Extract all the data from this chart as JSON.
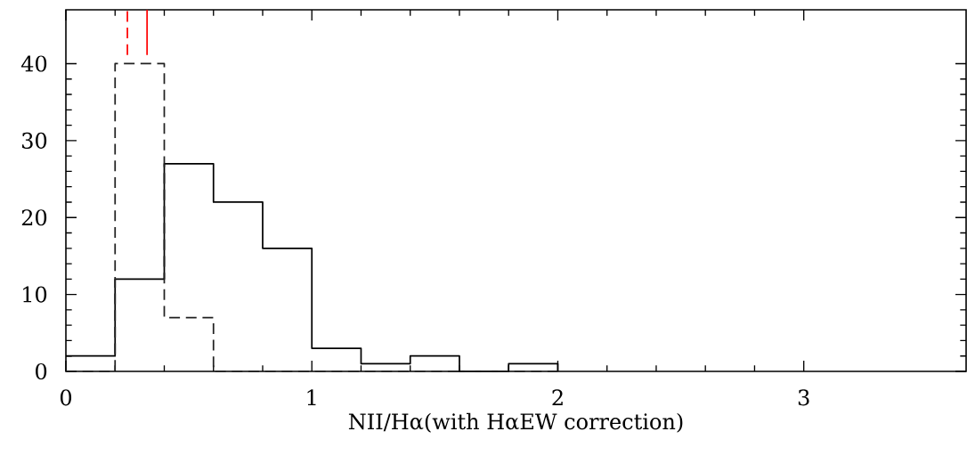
{
  "chart_data": {
    "type": "histogram",
    "xlabel": "NII/Hα(with HαEW correction)",
    "bins": [
      0,
      0.2,
      0.4,
      0.6,
      0.8,
      1.0,
      1.2,
      1.4,
      1.6,
      1.8,
      2.0
    ],
    "series": [
      {
        "color": "#000000",
        "line_style": "solid",
        "values": [
          2,
          12,
          27,
          22,
          16,
          3,
          1,
          2,
          0,
          1
        ]
      },
      {
        "color": "#202020",
        "line_style": "dashed",
        "values": [
          0,
          40,
          7,
          0,
          0,
          0,
          0,
          0,
          0,
          0
        ]
      }
    ],
    "xlim": [
      0,
      3.66
    ],
    "ylim": [
      0,
      47
    ],
    "xticks": [
      0,
      1,
      2,
      3
    ],
    "yticks": [
      0,
      10,
      20,
      30,
      40
    ],
    "ref_lines": [
      {
        "axis": "x",
        "value": 0.25,
        "color": "#ff0000",
        "line_style": "dashed"
      },
      {
        "axis": "x",
        "value": 0.33,
        "color": "#ff0000",
        "line_style": "solid"
      }
    ],
    "grid": false
  }
}
